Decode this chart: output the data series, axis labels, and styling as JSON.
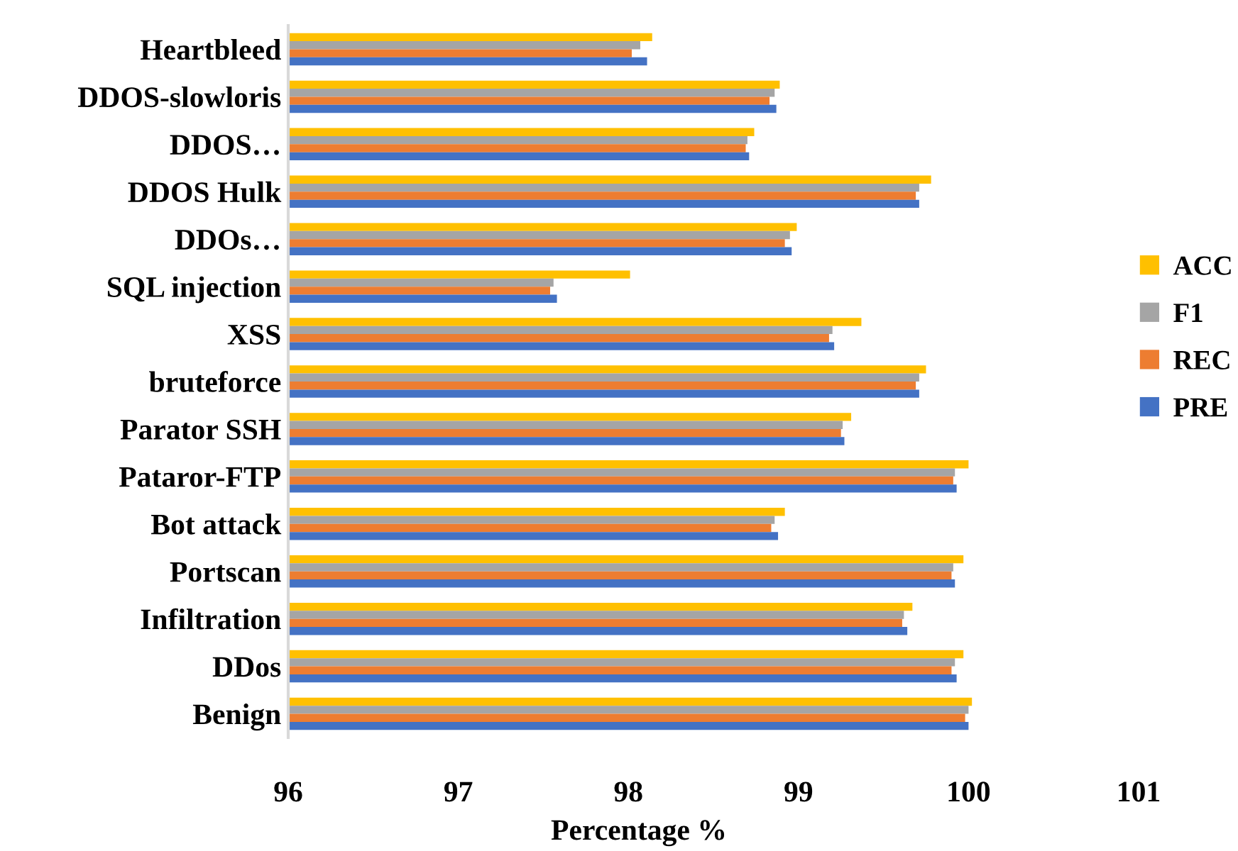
{
  "chart_data": {
    "type": "bar",
    "orientation": "horizontal",
    "xlabel": "Percentage %",
    "categories": [
      "Heartbleed",
      "DDOS-slowloris",
      "DDOS…",
      "DDOS Hulk",
      "DDOs…",
      "SQL injection",
      "XSS",
      "bruteforce",
      "Parator SSH",
      "Pataror-FTP",
      "Bot attack",
      "Portscan",
      "Infiltration",
      "DDos",
      "Benign"
    ],
    "series": [
      {
        "name": "ACC",
        "color": "#ffc000",
        "values": [
          98.14,
          98.89,
          98.74,
          99.78,
          98.99,
          98.01,
          99.37,
          99.75,
          99.31,
          100.0,
          98.92,
          99.97,
          99.67,
          99.97,
          100.02
        ]
      },
      {
        "name": "F1",
        "color": "#a5a5a5",
        "values": [
          98.07,
          98.86,
          98.7,
          99.71,
          98.95,
          97.56,
          99.2,
          99.71,
          99.26,
          99.92,
          98.86,
          99.91,
          99.62,
          99.92,
          100.0
        ]
      },
      {
        "name": "REC",
        "color": "#ed7d31",
        "values": [
          98.02,
          98.83,
          98.69,
          99.69,
          98.92,
          97.54,
          99.18,
          99.69,
          99.25,
          99.91,
          98.84,
          99.9,
          99.61,
          99.9,
          99.98
        ]
      },
      {
        "name": "PRE",
        "color": "#4472c4",
        "values": [
          98.11,
          98.87,
          98.71,
          99.71,
          98.96,
          97.58,
          99.21,
          99.71,
          99.27,
          99.93,
          98.88,
          99.92,
          99.64,
          99.93,
          100.0
        ]
      }
    ],
    "xlim": [
      96,
      101
    ],
    "xticks": [
      96,
      97,
      98,
      99,
      100,
      101
    ],
    "grid": false,
    "legend": "right"
  }
}
